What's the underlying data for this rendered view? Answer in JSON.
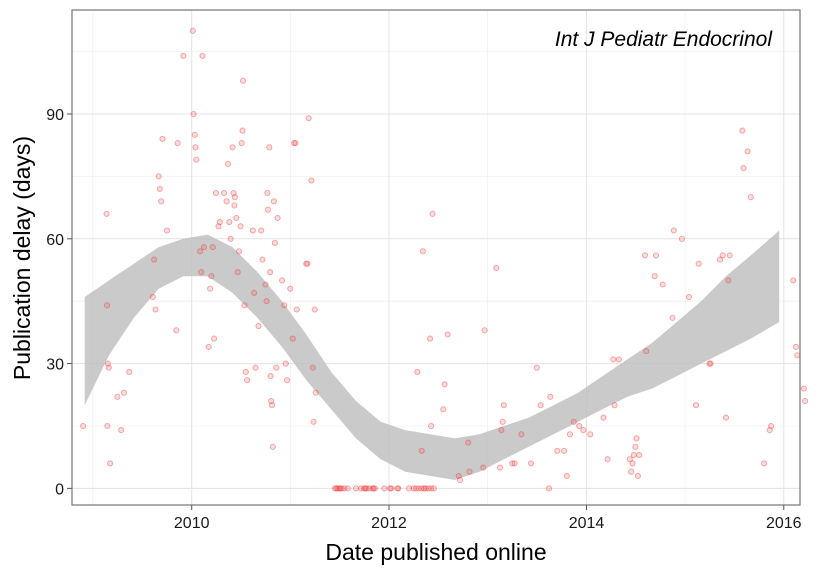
{
  "chart_data": {
    "type": "scatter",
    "annotation": "Int J Pediatr Endocrinol",
    "xlabel": "Date published online",
    "ylabel": "Publication delay (days)",
    "xlim": [
      "2008-10-15",
      "2016-03-01"
    ],
    "ylim": [
      -4,
      115
    ],
    "xticks": [
      {
        "value": "2010-01-01",
        "label": "2010"
      },
      {
        "value": "2012-01-01",
        "label": "2012"
      },
      {
        "value": "2014-01-01",
        "label": "2014"
      },
      {
        "value": "2016-01-01",
        "label": "2016"
      }
    ],
    "yticks": [
      {
        "value": 0,
        "label": "0"
      },
      {
        "value": 30,
        "label": "30"
      },
      {
        "value": 60,
        "label": "60"
      },
      {
        "value": 90,
        "label": "90"
      }
    ],
    "grid": true,
    "point_color": "#ef3b3b",
    "band_color": "#bdbdbd",
    "points": [
      {
        "x": "2008-11-25",
        "y": 15
      },
      {
        "x": "2009-02-20",
        "y": 66
      },
      {
        "x": "2009-02-22",
        "y": 44
      },
      {
        "x": "2009-02-25",
        "y": 30
      },
      {
        "x": "2009-02-28",
        "y": 29
      },
      {
        "x": "2009-03-05",
        "y": 6
      },
      {
        "x": "2009-02-23",
        "y": 15
      },
      {
        "x": "2009-04-01",
        "y": 22
      },
      {
        "x": "2009-04-15",
        "y": 14
      },
      {
        "x": "2009-04-25",
        "y": 23
      },
      {
        "x": "2009-05-15",
        "y": 28
      },
      {
        "x": "2009-08-10",
        "y": 46
      },
      {
        "x": "2009-08-15",
        "y": 55
      },
      {
        "x": "2009-08-20",
        "y": 43
      },
      {
        "x": "2009-09-01",
        "y": 75
      },
      {
        "x": "2009-09-05",
        "y": 72
      },
      {
        "x": "2009-09-10",
        "y": 69
      },
      {
        "x": "2009-09-15",
        "y": 84
      },
      {
        "x": "2009-10-01",
        "y": 62
      },
      {
        "x": "2009-11-05",
        "y": 38
      },
      {
        "x": "2009-11-10",
        "y": 83
      },
      {
        "x": "2009-12-01",
        "y": 104
      },
      {
        "x": "2010-01-05",
        "y": 110
      },
      {
        "x": "2010-01-08",
        "y": 90
      },
      {
        "x": "2010-01-12",
        "y": 85
      },
      {
        "x": "2010-01-15",
        "y": 82
      },
      {
        "x": "2010-01-18",
        "y": 79
      },
      {
        "x": "2010-02-01",
        "y": 57
      },
      {
        "x": "2010-02-05",
        "y": 52
      },
      {
        "x": "2010-02-10",
        "y": 104
      },
      {
        "x": "2010-02-15",
        "y": 58
      },
      {
        "x": "2010-03-05",
        "y": 34
      },
      {
        "x": "2010-03-10",
        "y": 48
      },
      {
        "x": "2010-03-15",
        "y": 51
      },
      {
        "x": "2010-03-20",
        "y": 58
      },
      {
        "x": "2010-03-25",
        "y": 36
      },
      {
        "x": "2010-04-01",
        "y": 71
      },
      {
        "x": "2010-04-10",
        "y": 63
      },
      {
        "x": "2010-04-15",
        "y": 64
      },
      {
        "x": "2010-05-01",
        "y": 71
      },
      {
        "x": "2010-05-10",
        "y": 69
      },
      {
        "x": "2010-05-15",
        "y": 78
      },
      {
        "x": "2010-05-20",
        "y": 64
      },
      {
        "x": "2010-05-25",
        "y": 60
      },
      {
        "x": "2010-06-01",
        "y": 82
      },
      {
        "x": "2010-06-05",
        "y": 71
      },
      {
        "x": "2010-06-08",
        "y": 68
      },
      {
        "x": "2010-06-10",
        "y": 70
      },
      {
        "x": "2010-06-15",
        "y": 65
      },
      {
        "x": "2010-06-20",
        "y": 52
      },
      {
        "x": "2010-06-25",
        "y": 57
      },
      {
        "x": "2010-07-01",
        "y": 63
      },
      {
        "x": "2010-07-05",
        "y": 83
      },
      {
        "x": "2010-07-08",
        "y": 86
      },
      {
        "x": "2010-07-10",
        "y": 98
      },
      {
        "x": "2010-07-15",
        "y": 44
      },
      {
        "x": "2010-07-20",
        "y": 28
      },
      {
        "x": "2010-07-25",
        "y": 26
      },
      {
        "x": "2010-08-15",
        "y": 62
      },
      {
        "x": "2010-08-20",
        "y": 47
      },
      {
        "x": "2010-08-25",
        "y": 29
      },
      {
        "x": "2010-09-05",
        "y": 39
      },
      {
        "x": "2010-09-15",
        "y": 62
      },
      {
        "x": "2010-09-20",
        "y": 55
      },
      {
        "x": "2010-10-01",
        "y": 49
      },
      {
        "x": "2010-10-05",
        "y": 45
      },
      {
        "x": "2010-10-08",
        "y": 71
      },
      {
        "x": "2010-10-10",
        "y": 67
      },
      {
        "x": "2010-10-15",
        "y": 82
      },
      {
        "x": "2010-10-18",
        "y": 52
      },
      {
        "x": "2010-10-20",
        "y": 27
      },
      {
        "x": "2010-10-22",
        "y": 21
      },
      {
        "x": "2010-10-25",
        "y": 20
      },
      {
        "x": "2010-10-28",
        "y": 10
      },
      {
        "x": "2010-11-01",
        "y": 69
      },
      {
        "x": "2010-11-05",
        "y": 59
      },
      {
        "x": "2010-11-10",
        "y": 29
      },
      {
        "x": "2010-11-15",
        "y": 65
      },
      {
        "x": "2010-12-01",
        "y": 50
      },
      {
        "x": "2010-12-10",
        "y": 44
      },
      {
        "x": "2010-12-15",
        "y": 30
      },
      {
        "x": "2010-12-20",
        "y": 26
      },
      {
        "x": "2011-01-01",
        "y": 48
      },
      {
        "x": "2011-01-10",
        "y": 36
      },
      {
        "x": "2011-01-15",
        "y": 83
      },
      {
        "x": "2011-01-20",
        "y": 83
      },
      {
        "x": "2011-01-25",
        "y": 43
      },
      {
        "x": "2011-03-01",
        "y": 54
      },
      {
        "x": "2011-03-05",
        "y": 54
      },
      {
        "x": "2011-03-10",
        "y": 89
      },
      {
        "x": "2011-03-20",
        "y": 74
      },
      {
        "x": "2011-03-25",
        "y": 29
      },
      {
        "x": "2011-03-28",
        "y": 16
      },
      {
        "x": "2011-04-01",
        "y": 43
      },
      {
        "x": "2011-04-05",
        "y": 23
      },
      {
        "x": "2011-06-15",
        "y": 0
      },
      {
        "x": "2011-06-20",
        "y": 0
      },
      {
        "x": "2011-06-25",
        "y": 0
      },
      {
        "x": "2011-07-01",
        "y": 0
      },
      {
        "x": "2011-07-05",
        "y": 0
      },
      {
        "x": "2011-07-10",
        "y": 0
      },
      {
        "x": "2011-07-20",
        "y": 0
      },
      {
        "x": "2011-08-01",
        "y": 0
      },
      {
        "x": "2011-09-01",
        "y": 0
      },
      {
        "x": "2011-09-20",
        "y": 0
      },
      {
        "x": "2011-10-01",
        "y": 0
      },
      {
        "x": "2011-10-05",
        "y": 0
      },
      {
        "x": "2011-10-10",
        "y": 0
      },
      {
        "x": "2011-10-20",
        "y": 0
      },
      {
        "x": "2011-11-01",
        "y": 0
      },
      {
        "x": "2011-11-05",
        "y": 0
      },
      {
        "x": "2011-11-10",
        "y": 0
      },
      {
        "x": "2011-12-15",
        "y": 0
      },
      {
        "x": "2012-01-05",
        "y": 0
      },
      {
        "x": "2012-01-10",
        "y": 0
      },
      {
        "x": "2012-02-01",
        "y": 0
      },
      {
        "x": "2012-02-05",
        "y": 0
      },
      {
        "x": "2012-03-15",
        "y": 0
      },
      {
        "x": "2012-04-01",
        "y": 0
      },
      {
        "x": "2012-04-10",
        "y": 0
      },
      {
        "x": "2012-04-20",
        "y": 0
      },
      {
        "x": "2012-05-01",
        "y": 0
      },
      {
        "x": "2012-05-10",
        "y": 0
      },
      {
        "x": "2012-05-15",
        "y": 0
      },
      {
        "x": "2012-05-25",
        "y": 0
      },
      {
        "x": "2012-06-05",
        "y": 0
      },
      {
        "x": "2012-06-15",
        "y": 0
      },
      {
        "x": "2012-04-15",
        "y": 28
      },
      {
        "x": "2012-05-01",
        "y": 9
      },
      {
        "x": "2012-05-05",
        "y": 57
      },
      {
        "x": "2012-06-01",
        "y": 36
      },
      {
        "x": "2012-06-05",
        "y": 15
      },
      {
        "x": "2012-06-10",
        "y": 66
      },
      {
        "x": "2012-07-20",
        "y": 19
      },
      {
        "x": "2012-07-25",
        "y": 25
      },
      {
        "x": "2012-08-05",
        "y": 37
      },
      {
        "x": "2012-09-15",
        "y": 3
      },
      {
        "x": "2012-09-20",
        "y": 2
      },
      {
        "x": "2012-10-20",
        "y": 11
      },
      {
        "x": "2012-10-25",
        "y": 4
      },
      {
        "x": "2012-12-15",
        "y": 5
      },
      {
        "x": "2012-12-20",
        "y": 38
      },
      {
        "x": "2013-02-01",
        "y": 53
      },
      {
        "x": "2013-02-20",
        "y": 14
      },
      {
        "x": "2013-02-25",
        "y": 16
      },
      {
        "x": "2013-03-01",
        "y": 20
      },
      {
        "x": "2013-02-15",
        "y": 5
      },
      {
        "x": "2013-04-01",
        "y": 6
      },
      {
        "x": "2013-04-10",
        "y": 6
      },
      {
        "x": "2013-05-05",
        "y": 13
      },
      {
        "x": "2013-06-10",
        "y": 6
      },
      {
        "x": "2013-07-01",
        "y": 29
      },
      {
        "x": "2013-07-15",
        "y": 20
      },
      {
        "x": "2013-08-15",
        "y": 0
      },
      {
        "x": "2013-08-20",
        "y": 22
      },
      {
        "x": "2013-09-15",
        "y": 9
      },
      {
        "x": "2013-10-10",
        "y": 9
      },
      {
        "x": "2013-10-20",
        "y": 3
      },
      {
        "x": "2013-11-01",
        "y": 13
      },
      {
        "x": "2013-11-15",
        "y": 16
      },
      {
        "x": "2013-12-05",
        "y": 15
      },
      {
        "x": "2013-12-20",
        "y": 14
      },
      {
        "x": "2014-01-15",
        "y": 13
      },
      {
        "x": "2014-03-05",
        "y": 17
      },
      {
        "x": "2014-03-20",
        "y": 7
      },
      {
        "x": "2014-04-10",
        "y": 31
      },
      {
        "x": "2014-04-15",
        "y": 20
      },
      {
        "x": "2014-05-01",
        "y": 31
      },
      {
        "x": "2014-06-10",
        "y": 7
      },
      {
        "x": "2014-06-15",
        "y": 4
      },
      {
        "x": "2014-06-20",
        "y": 6
      },
      {
        "x": "2014-06-25",
        "y": 8
      },
      {
        "x": "2014-07-01",
        "y": 10
      },
      {
        "x": "2014-07-05",
        "y": 12
      },
      {
        "x": "2014-07-10",
        "y": 3
      },
      {
        "x": "2014-07-15",
        "y": 8
      },
      {
        "x": "2014-08-05",
        "y": 56
      },
      {
        "x": "2014-08-10",
        "y": 33
      },
      {
        "x": "2014-09-10",
        "y": 51
      },
      {
        "x": "2014-09-15",
        "y": 56
      },
      {
        "x": "2014-10-10",
        "y": 49
      },
      {
        "x": "2014-11-15",
        "y": 41
      },
      {
        "x": "2014-11-20",
        "y": 62
      },
      {
        "x": "2014-12-20",
        "y": 60
      },
      {
        "x": "2015-01-15",
        "y": 46
      },
      {
        "x": "2015-02-10",
        "y": 20
      },
      {
        "x": "2015-02-20",
        "y": 54
      },
      {
        "x": "2015-04-01",
        "y": 30
      },
      {
        "x": "2015-04-05",
        "y": 30
      },
      {
        "x": "2015-05-10",
        "y": 55
      },
      {
        "x": "2015-05-20",
        "y": 56
      },
      {
        "x": "2015-06-01",
        "y": 17
      },
      {
        "x": "2015-06-10",
        "y": 50
      },
      {
        "x": "2015-06-15",
        "y": 56
      },
      {
        "x": "2015-08-01",
        "y": 86
      },
      {
        "x": "2015-08-05",
        "y": 77
      },
      {
        "x": "2015-08-20",
        "y": 81
      },
      {
        "x": "2015-09-01",
        "y": 70
      },
      {
        "x": "2015-10-20",
        "y": 6
      },
      {
        "x": "2015-11-10",
        "y": 14
      },
      {
        "x": "2015-11-15",
        "y": 15
      },
      {
        "x": "2016-02-05",
        "y": 50
      },
      {
        "x": "2016-02-15",
        "y": 34
      },
      {
        "x": "2016-02-20",
        "y": 32
      },
      {
        "x": "2016-03-15",
        "y": 24
      },
      {
        "x": "2016-03-20",
        "y": 21
      }
    ],
    "smooth_band": [
      {
        "x": "2008-12-01",
        "lower": 20,
        "upper": 46
      },
      {
        "x": "2009-03-01",
        "lower": 32,
        "upper": 50
      },
      {
        "x": "2009-06-01",
        "lower": 41,
        "upper": 54
      },
      {
        "x": "2009-09-01",
        "lower": 48,
        "upper": 58
      },
      {
        "x": "2009-12-01",
        "lower": 51,
        "upper": 60
      },
      {
        "x": "2010-03-01",
        "lower": 51,
        "upper": 61
      },
      {
        "x": "2010-06-01",
        "lower": 47,
        "upper": 58
      },
      {
        "x": "2010-09-01",
        "lower": 41,
        "upper": 52
      },
      {
        "x": "2010-12-01",
        "lower": 34,
        "upper": 45
      },
      {
        "x": "2011-03-01",
        "lower": 26,
        "upper": 37
      },
      {
        "x": "2011-06-01",
        "lower": 19,
        "upper": 28
      },
      {
        "x": "2011-09-01",
        "lower": 12,
        "upper": 21
      },
      {
        "x": "2011-12-01",
        "lower": 7,
        "upper": 16
      },
      {
        "x": "2012-03-01",
        "lower": 4,
        "upper": 14
      },
      {
        "x": "2012-06-01",
        "lower": 3,
        "upper": 13
      },
      {
        "x": "2012-09-01",
        "lower": 2,
        "upper": 12
      },
      {
        "x": "2012-12-01",
        "lower": 4,
        "upper": 13
      },
      {
        "x": "2013-03-01",
        "lower": 7,
        "upper": 15
      },
      {
        "x": "2013-06-01",
        "lower": 10,
        "upper": 17
      },
      {
        "x": "2013-09-01",
        "lower": 13,
        "upper": 20
      },
      {
        "x": "2013-12-01",
        "lower": 16,
        "upper": 23
      },
      {
        "x": "2014-03-01",
        "lower": 19,
        "upper": 27
      },
      {
        "x": "2014-06-01",
        "lower": 22,
        "upper": 31
      },
      {
        "x": "2014-09-01",
        "lower": 24,
        "upper": 35
      },
      {
        "x": "2014-12-01",
        "lower": 27,
        "upper": 40
      },
      {
        "x": "2015-03-01",
        "lower": 30,
        "upper": 45
      },
      {
        "x": "2015-06-01",
        "lower": 33,
        "upper": 51
      },
      {
        "x": "2015-09-01",
        "lower": 36,
        "upper": 56
      },
      {
        "x": "2015-12-15",
        "lower": 40,
        "upper": 62
      }
    ]
  }
}
